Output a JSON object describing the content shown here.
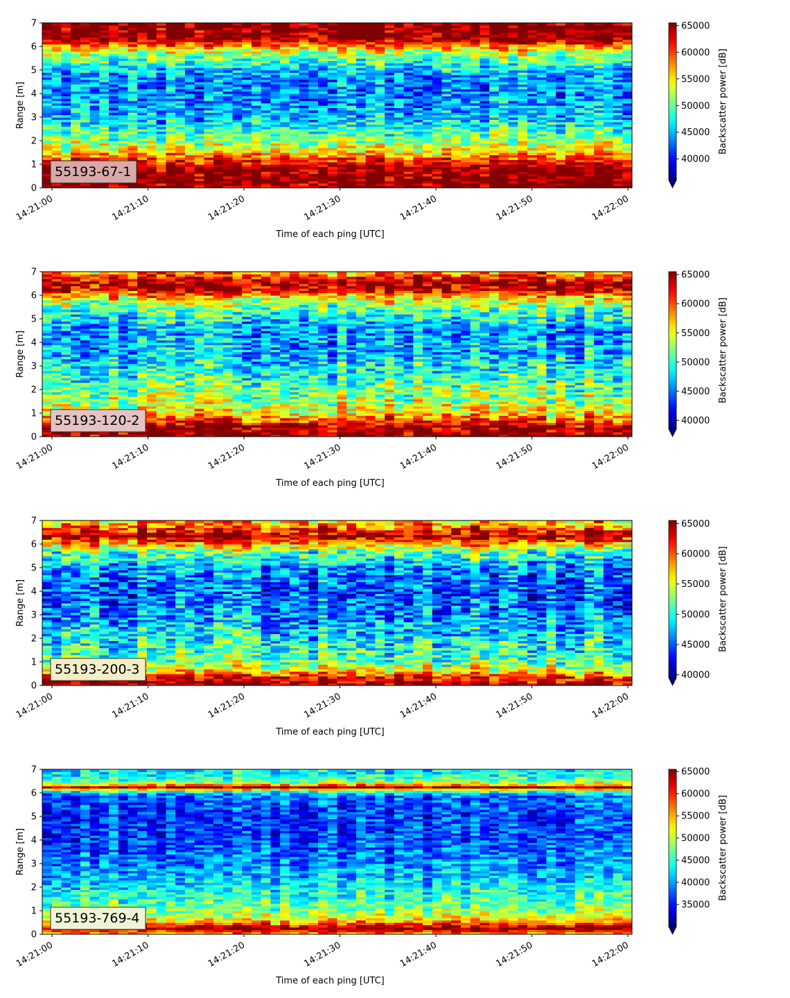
{
  "figure": {
    "background": "#ffffff",
    "colormap": "jet"
  },
  "chart_data": [
    {
      "type": "heatmap",
      "label": "55193-67-1",
      "label_box_color": "#d9a9a9",
      "xlabel": "Time of each ping [UTC]",
      "ylabel": "Range [m]",
      "xticks": [
        "14:21:00",
        "14:21:10",
        "14:21:20",
        "14:21:30",
        "14:21:40",
        "14:21:50",
        "14:22:00"
      ],
      "yticks": [
        0,
        1,
        2,
        3,
        4,
        5,
        6,
        7
      ],
      "ylim": [
        0,
        7
      ],
      "colorbar_label": "Backscatter power [dB]",
      "colorbar_ticks": [
        40000,
        45000,
        50000,
        55000,
        60000,
        65000
      ],
      "colorbar_ticklabels": [
        "40000",
        "45000",
        "50000",
        "55000",
        "60000",
        "65000"
      ],
      "clim": [
        36000,
        65500
      ],
      "colorbar_extend": "min",
      "profile": [
        {
          "range": 0.1,
          "power": 65500
        },
        {
          "range": 0.3,
          "power": 65500
        },
        {
          "range": 0.9,
          "power": 65000
        },
        {
          "range": 1.2,
          "power": 60000
        },
        {
          "range": 1.6,
          "power": 54000
        },
        {
          "range": 2.2,
          "power": 50000
        },
        {
          "range": 3.0,
          "power": 45000
        },
        {
          "range": 4.0,
          "power": 43000
        },
        {
          "range": 4.8,
          "power": 44000
        },
        {
          "range": 5.3,
          "power": 48000
        },
        {
          "range": 5.8,
          "power": 53000
        },
        {
          "range": 6.1,
          "power": 59000
        },
        {
          "range": 6.3,
          "power": 65000
        },
        {
          "range": 7.0,
          "power": 65500
        }
      ]
    },
    {
      "type": "heatmap",
      "label": "55193-120-2",
      "label_box_color": "#e6c3c3",
      "xlabel": "Time of each ping [UTC]",
      "ylabel": "Range [m]",
      "xticks": [
        "14:21:00",
        "14:21:10",
        "14:21:20",
        "14:21:30",
        "14:21:40",
        "14:21:50",
        "14:22:00"
      ],
      "yticks": [
        0,
        1,
        2,
        3,
        4,
        5,
        6,
        7
      ],
      "ylim": [
        0,
        7
      ],
      "colorbar_label": "Backscatter power [dB]",
      "colorbar_ticks": [
        40000,
        45000,
        50000,
        55000,
        60000,
        65000
      ],
      "colorbar_ticklabels": [
        "40000",
        "45000",
        "50000",
        "55000",
        "60000",
        "65000"
      ],
      "clim": [
        38500,
        65500
      ],
      "colorbar_extend": "min",
      "profile": [
        {
          "range": 0.1,
          "power": 65500
        },
        {
          "range": 0.4,
          "power": 65000
        },
        {
          "range": 0.7,
          "power": 60000
        },
        {
          "range": 1.0,
          "power": 56000
        },
        {
          "range": 1.6,
          "power": 53000
        },
        {
          "range": 2.5,
          "power": 50000
        },
        {
          "range": 3.5,
          "power": 47000
        },
        {
          "range": 4.5,
          "power": 46000
        },
        {
          "range": 5.3,
          "power": 50000
        },
        {
          "range": 5.9,
          "power": 56000
        },
        {
          "range": 6.2,
          "power": 63000
        },
        {
          "range": 6.5,
          "power": 65000
        },
        {
          "range": 6.8,
          "power": 61000
        },
        {
          "range": 7.0,
          "power": 58000
        }
      ]
    },
    {
      "type": "heatmap",
      "label": "55193-200-3",
      "label_box_color": "#f2efc8",
      "xlabel": "Time of each ping [UTC]",
      "ylabel": "Range [m]",
      "xticks": [
        "14:21:00",
        "14:21:10",
        "14:21:20",
        "14:21:30",
        "14:21:40",
        "14:21:50",
        "14:22:00"
      ],
      "yticks": [
        0,
        1,
        2,
        3,
        4,
        5,
        6,
        7
      ],
      "ylim": [
        0,
        7
      ],
      "colorbar_label": "Backscatter power [dB]",
      "colorbar_ticks": [
        40000,
        45000,
        50000,
        55000,
        60000,
        65000
      ],
      "colorbar_ticklabels": [
        "40000",
        "45000",
        "50000",
        "55000",
        "60000",
        "65000"
      ],
      "clim": [
        39500,
        65500
      ],
      "colorbar_extend": "min",
      "profile": [
        {
          "range": 0.1,
          "power": 65000
        },
        {
          "range": 0.35,
          "power": 63000
        },
        {
          "range": 0.6,
          "power": 57000
        },
        {
          "range": 1.0,
          "power": 52000
        },
        {
          "range": 1.8,
          "power": 50000
        },
        {
          "range": 3.0,
          "power": 46500
        },
        {
          "range": 4.0,
          "power": 45000
        },
        {
          "range": 5.0,
          "power": 47000
        },
        {
          "range": 5.7,
          "power": 52000
        },
        {
          "range": 6.1,
          "power": 60000
        },
        {
          "range": 6.35,
          "power": 65000
        },
        {
          "range": 6.7,
          "power": 60000
        },
        {
          "range": 7.0,
          "power": 57000
        }
      ]
    },
    {
      "type": "heatmap",
      "label": "55193-769-4",
      "label_box_color": "#eef4d6",
      "xlabel": "Time of each ping [UTC]",
      "ylabel": "Range [m]",
      "xticks": [
        "14:21:00",
        "14:21:10",
        "14:21:20",
        "14:21:30",
        "14:21:40",
        "14:21:50",
        "14:22:00"
      ],
      "yticks": [
        0,
        1,
        2,
        3,
        4,
        5,
        6,
        7
      ],
      "ylim": [
        0,
        7
      ],
      "colorbar_label": "Backscatter power [dB]",
      "colorbar_ticks": [
        35000,
        40000,
        45000,
        50000,
        55000,
        60000,
        65000
      ],
      "colorbar_ticklabels": [
        "35000",
        "40000",
        "45000",
        "50000",
        "55000",
        "60000",
        "65000"
      ],
      "clim": [
        30000,
        65500
      ],
      "colorbar_extend": "min",
      "profile": [
        {
          "range": 0.05,
          "power": 56000
        },
        {
          "range": 0.25,
          "power": 65000
        },
        {
          "range": 0.4,
          "power": 60000
        },
        {
          "range": 0.7,
          "power": 51000
        },
        {
          "range": 1.2,
          "power": 47000
        },
        {
          "range": 2.0,
          "power": 43000
        },
        {
          "range": 3.0,
          "power": 39000
        },
        {
          "range": 4.0,
          "power": 37000
        },
        {
          "range": 5.0,
          "power": 36000
        },
        {
          "range": 5.9,
          "power": 38000
        },
        {
          "range": 6.1,
          "power": 47000
        },
        {
          "range": 6.25,
          "power": 65000
        },
        {
          "range": 6.4,
          "power": 50000
        },
        {
          "range": 6.7,
          "power": 44000
        },
        {
          "range": 7.0,
          "power": 42000
        }
      ]
    }
  ]
}
